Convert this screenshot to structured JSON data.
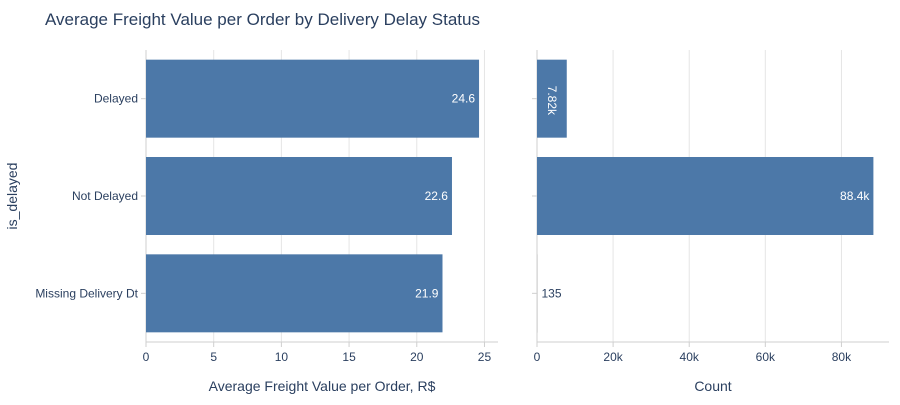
{
  "title": "Average Freight Value per Order by Delivery Delay Status",
  "colors": {
    "bar": "#4c78a8",
    "grid": "#e5e5e5",
    "axis": "#cfcfcf",
    "text": "#2a3f5f",
    "title": "#2a3f5f",
    "bar_label": "#ffffff",
    "outside_label": "#2a3f5f"
  },
  "chart_data": [
    {
      "type": "bar",
      "orientation": "horizontal",
      "title": "Average Freight Value per Order by Delivery Delay Status",
      "categories": [
        "Delayed",
        "Not Delayed",
        "Missing Delivery Dt"
      ],
      "values": [
        24.6,
        22.6,
        21.9
      ],
      "value_labels": [
        "24.6",
        "22.6",
        "21.9"
      ],
      "xlabel": "Average Freight Value per Order, R$",
      "ylabel": "is_delayed",
      "xlim": [
        0,
        26
      ],
      "xticks": [
        0,
        5,
        10,
        15,
        20,
        25
      ],
      "xtick_labels": [
        "0",
        "5",
        "10",
        "15",
        "20",
        "25"
      ],
      "grid": true
    },
    {
      "type": "bar",
      "orientation": "horizontal",
      "categories": [
        "Delayed",
        "Not Delayed",
        "Missing Delivery Dt"
      ],
      "values": [
        7820,
        88400,
        135
      ],
      "value_labels": [
        "7.82k",
        "88.4k",
        "135"
      ],
      "xlabel": "Count",
      "xlim": [
        0,
        92500
      ],
      "xticks": [
        0,
        20000,
        40000,
        60000,
        80000
      ],
      "xtick_labels": [
        "0",
        "20k",
        "40k",
        "60k",
        "80k"
      ],
      "grid": true
    }
  ]
}
